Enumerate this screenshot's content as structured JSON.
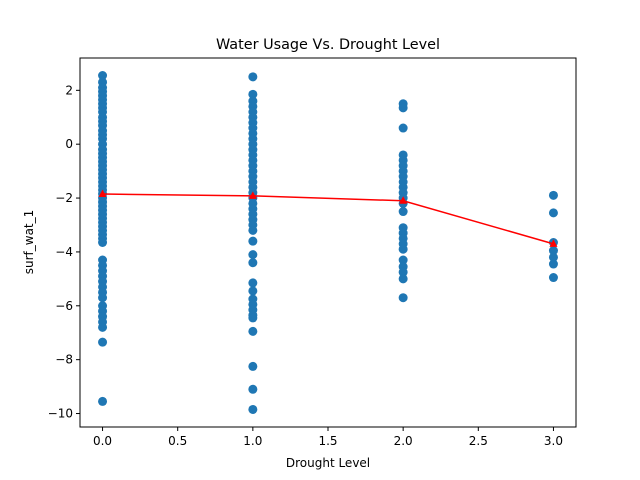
{
  "chart_data": {
    "type": "scatter",
    "title": "Water Usage Vs. Drought Level",
    "xlabel": "Drought Level",
    "ylabel": "surf_wat_1",
    "xlim": [
      -0.15,
      3.15
    ],
    "ylim": [
      -10.5,
      3.2
    ],
    "xticks": [
      "0.0",
      "0.5",
      "1.0",
      "1.5",
      "2.0",
      "2.5",
      "3.0"
    ],
    "xtick_values": [
      0,
      0.5,
      1,
      1.5,
      2,
      2.5,
      3
    ],
    "yticks": [
      "−10",
      "−8",
      "−6",
      "−4",
      "−2",
      "0",
      "2"
    ],
    "ytick_values": [
      -10,
      -8,
      -6,
      -4,
      -2,
      0,
      2
    ],
    "grid": false,
    "colors": {
      "scatter": "#1f77b4",
      "mean_line": "#ff0000"
    },
    "series": [
      {
        "type": "scatter",
        "points": [
          [
            0,
            2.55
          ],
          [
            0,
            2.3
          ],
          [
            0,
            2.1
          ],
          [
            0,
            1.95
          ],
          [
            0,
            1.8
          ],
          [
            0,
            1.65
          ],
          [
            0,
            1.5
          ],
          [
            0,
            1.35
          ],
          [
            0,
            1.2
          ],
          [
            0,
            1.0
          ],
          [
            0,
            0.85
          ],
          [
            0,
            0.7
          ],
          [
            0,
            0.5
          ],
          [
            0,
            0.35
          ],
          [
            0,
            0.2
          ],
          [
            0,
            0.0
          ],
          [
            0,
            -0.2
          ],
          [
            0,
            -0.35
          ],
          [
            0,
            -0.5
          ],
          [
            0,
            -0.65
          ],
          [
            0,
            -0.8
          ],
          [
            0,
            -0.95
          ],
          [
            0,
            -1.1
          ],
          [
            0,
            -1.25
          ],
          [
            0,
            -1.4
          ],
          [
            0,
            -1.55
          ],
          [
            0,
            -1.7
          ],
          [
            0,
            -1.85
          ],
          [
            0,
            -2.0
          ],
          [
            0,
            -2.15
          ],
          [
            0,
            -2.3
          ],
          [
            0,
            -2.45
          ],
          [
            0,
            -2.6
          ],
          [
            0,
            -2.75
          ],
          [
            0,
            -2.9
          ],
          [
            0,
            -3.05
          ],
          [
            0,
            -3.2
          ],
          [
            0,
            -3.35
          ],
          [
            0,
            -3.5
          ],
          [
            0,
            -3.65
          ],
          [
            0,
            -4.3
          ],
          [
            0,
            -4.5
          ],
          [
            0,
            -4.7
          ],
          [
            0,
            -4.9
          ],
          [
            0,
            -5.1
          ],
          [
            0,
            -5.3
          ],
          [
            0,
            -5.5
          ],
          [
            0,
            -5.7
          ],
          [
            0,
            -6.0
          ],
          [
            0,
            -6.2
          ],
          [
            0,
            -6.4
          ],
          [
            0,
            -6.6
          ],
          [
            0,
            -6.8
          ],
          [
            0,
            -7.35
          ],
          [
            0,
            -9.55
          ],
          [
            1,
            2.5
          ],
          [
            1,
            1.85
          ],
          [
            1,
            1.6
          ],
          [
            1,
            1.4
          ],
          [
            1,
            1.2
          ],
          [
            1,
            1.0
          ],
          [
            1,
            0.8
          ],
          [
            1,
            0.6
          ],
          [
            1,
            0.4
          ],
          [
            1,
            0.2
          ],
          [
            1,
            0.0
          ],
          [
            1,
            -0.2
          ],
          [
            1,
            -0.4
          ],
          [
            1,
            -0.6
          ],
          [
            1,
            -0.8
          ],
          [
            1,
            -1.0
          ],
          [
            1,
            -1.2
          ],
          [
            1,
            -1.4
          ],
          [
            1,
            -1.6
          ],
          [
            1,
            -1.8
          ],
          [
            1,
            -2.0
          ],
          [
            1,
            -2.2
          ],
          [
            1,
            -2.4
          ],
          [
            1,
            -2.6
          ],
          [
            1,
            -2.8
          ],
          [
            1,
            -3.0
          ],
          [
            1,
            -3.2
          ],
          [
            1,
            -3.6
          ],
          [
            1,
            -4.1
          ],
          [
            1,
            -4.4
          ],
          [
            1,
            -5.15
          ],
          [
            1,
            -5.45
          ],
          [
            1,
            -5.75
          ],
          [
            1,
            -5.95
          ],
          [
            1,
            -6.15
          ],
          [
            1,
            -6.35
          ],
          [
            1,
            -6.45
          ],
          [
            1,
            -6.95
          ],
          [
            1,
            -8.25
          ],
          [
            1,
            -9.1
          ],
          [
            1,
            -9.85
          ],
          [
            2,
            1.5
          ],
          [
            2,
            1.35
          ],
          [
            2,
            0.6
          ],
          [
            2,
            -0.4
          ],
          [
            2,
            -0.6
          ],
          [
            2,
            -0.8
          ],
          [
            2,
            -1.0
          ],
          [
            2,
            -1.2
          ],
          [
            2,
            -1.4
          ],
          [
            2,
            -1.6
          ],
          [
            2,
            -1.8
          ],
          [
            2,
            -2.0
          ],
          [
            2,
            -2.2
          ],
          [
            2,
            -2.5
          ],
          [
            2,
            -3.1
          ],
          [
            2,
            -3.3
          ],
          [
            2,
            -3.5
          ],
          [
            2,
            -3.7
          ],
          [
            2,
            -3.9
          ],
          [
            2,
            -4.3
          ],
          [
            2,
            -4.55
          ],
          [
            2,
            -4.75
          ],
          [
            2,
            -5.0
          ],
          [
            2,
            -5.7
          ],
          [
            3,
            -1.9
          ],
          [
            3,
            -2.55
          ],
          [
            3,
            -3.65
          ],
          [
            3,
            -3.95
          ],
          [
            3,
            -4.2
          ],
          [
            3,
            -4.45
          ],
          [
            3,
            -4.95
          ]
        ]
      },
      {
        "type": "line",
        "marker": "^",
        "x": [
          0,
          1,
          2,
          3
        ],
        "y": [
          -1.85,
          -1.92,
          -2.1,
          -3.7
        ]
      }
    ]
  }
}
